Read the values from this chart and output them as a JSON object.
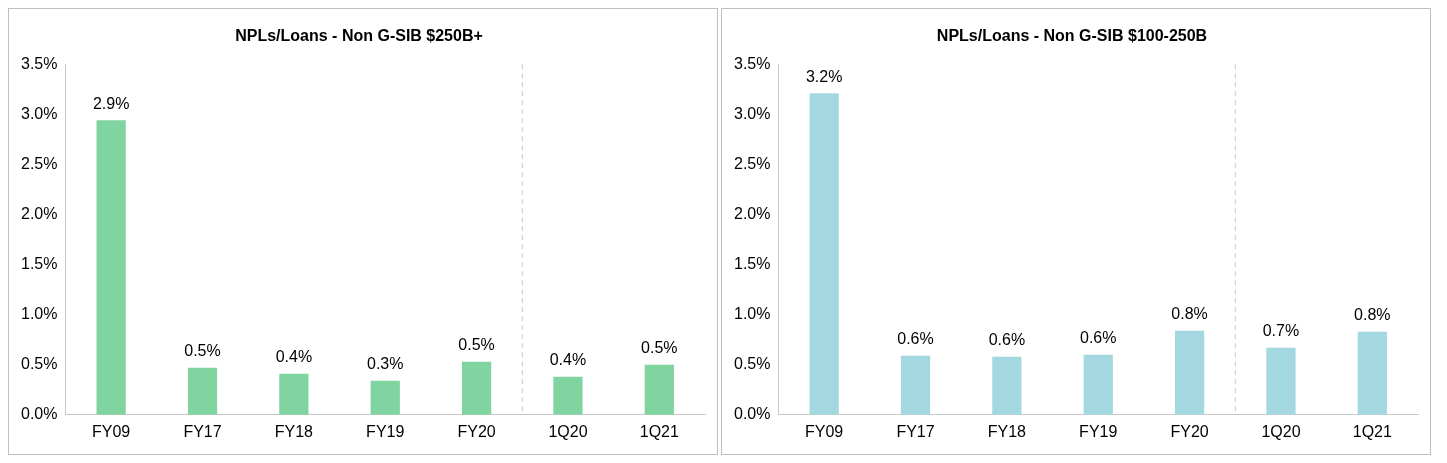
{
  "chart_data": [
    {
      "type": "bar",
      "title": "NPLs/Loans - Non G-SIB $250B+",
      "categories": [
        "FY09",
        "FY17",
        "FY18",
        "FY19",
        "FY20",
        "1Q20",
        "1Q21"
      ],
      "values": [
        2.94,
        0.47,
        0.41,
        0.34,
        0.53,
        0.38,
        0.5
      ],
      "value_labels": [
        "2.9%",
        "0.5%",
        "0.4%",
        "0.3%",
        "0.5%",
        "0.4%",
        "0.5%"
      ],
      "color": "#7fd4a0",
      "ylim": [
        0,
        3.5
      ],
      "yticks": [
        {
          "value": 0,
          "label": "0.0%"
        },
        {
          "value": 0.5,
          "label": "0.5%"
        },
        {
          "value": 1,
          "label": "1.0%"
        },
        {
          "value": 1.5,
          "label": "1.5%"
        },
        {
          "value": 2,
          "label": "2.0%"
        },
        {
          "value": 2.5,
          "label": "2.5%"
        },
        {
          "value": 3,
          "label": "3.0%"
        },
        {
          "value": 3.5,
          "label": "3.5%"
        }
      ],
      "grid": false,
      "legend": false
    },
    {
      "type": "bar",
      "title": "NPLs/Loans - Non G-SIB $100-250B",
      "categories": [
        "FY09",
        "FY17",
        "FY18",
        "FY19",
        "FY20",
        "1Q20",
        "1Q21"
      ],
      "values": [
        3.21,
        0.59,
        0.58,
        0.6,
        0.84,
        0.67,
        0.83
      ],
      "value_labels": [
        "3.2%",
        "0.6%",
        "0.6%",
        "0.6%",
        "0.8%",
        "0.7%",
        "0.8%"
      ],
      "color": "#a3d8e0",
      "ylim": [
        0,
        3.5
      ],
      "yticks": [
        {
          "value": 0,
          "label": "0.0%"
        },
        {
          "value": 0.5,
          "label": "0.5%"
        },
        {
          "value": 1,
          "label": "1.0%"
        },
        {
          "value": 1.5,
          "label": "1.5%"
        },
        {
          "value": 2,
          "label": "2.0%"
        },
        {
          "value": 2.5,
          "label": "2.5%"
        },
        {
          "value": 3,
          "label": "3.0%"
        },
        {
          "value": 3.5,
          "label": "3.5%"
        }
      ],
      "grid": false,
      "legend": false
    }
  ]
}
